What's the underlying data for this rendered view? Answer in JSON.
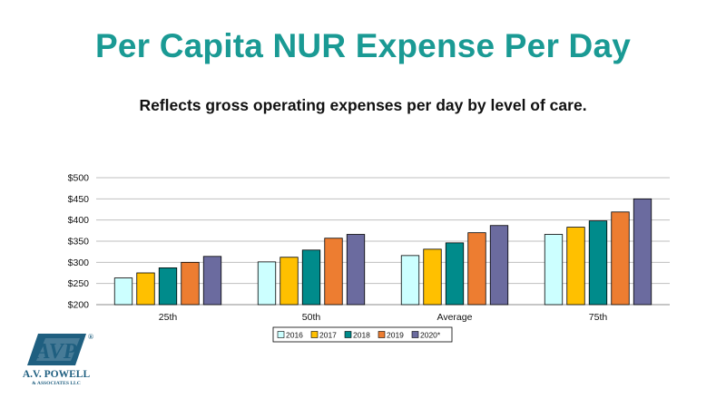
{
  "slide": {
    "title": "Per Capita NUR Expense Per Day",
    "subtitle": "Reflects gross operating expenses per day by level of care."
  },
  "logo": {
    "name_line1": "A.V. POWELL",
    "name_line2": "& ASSOCIATES LLC",
    "monogram": "AVP",
    "registered_mark": "®",
    "color": "#1f5f80",
    "accent_color": "#3a8fb0"
  },
  "chart_data": {
    "type": "bar",
    "categories": [
      "25th",
      "50th",
      "Average",
      "75th"
    ],
    "series": [
      {
        "name": "2016",
        "color": "#ccffff",
        "values": [
          263,
          301,
          316,
          366
        ]
      },
      {
        "name": "2017",
        "color": "#ffc000",
        "values": [
          275,
          312,
          331,
          383
        ]
      },
      {
        "name": "2018",
        "color": "#008b8b",
        "values": [
          287,
          329,
          346,
          398
        ]
      },
      {
        "name": "2019",
        "color": "#ed7d31",
        "values": [
          300,
          357,
          370,
          419
        ]
      },
      {
        "name": "2020*",
        "color": "#6b6b9f",
        "values": [
          314,
          366,
          387,
          450
        ]
      }
    ],
    "ylim": [
      200,
      500
    ],
    "yticks": [
      200,
      250,
      300,
      350,
      400,
      450,
      500
    ],
    "ytick_labels": [
      "$200",
      "$250",
      "$300",
      "$350",
      "$400",
      "$450",
      "$500"
    ],
    "grid": true,
    "legend_position": "bottom"
  }
}
